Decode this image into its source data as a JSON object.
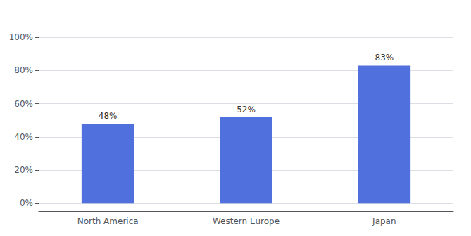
{
  "chart_data": {
    "type": "bar",
    "categories": [
      "North America",
      "Western Europe",
      "Japan"
    ],
    "values": [
      48,
      52,
      83
    ],
    "value_labels": [
      "48%",
      "52%",
      "83%"
    ],
    "data_labels": true,
    "ylim": [
      -5,
      112
    ],
    "yticks": [
      {
        "value": 0,
        "label": "0%"
      },
      {
        "value": 20,
        "label": "20%"
      },
      {
        "value": 40,
        "label": "40%"
      },
      {
        "value": 60,
        "label": "60%"
      },
      {
        "value": 80,
        "label": "80%"
      },
      {
        "value": 100,
        "label": "100%"
      }
    ],
    "grid": true
  }
}
